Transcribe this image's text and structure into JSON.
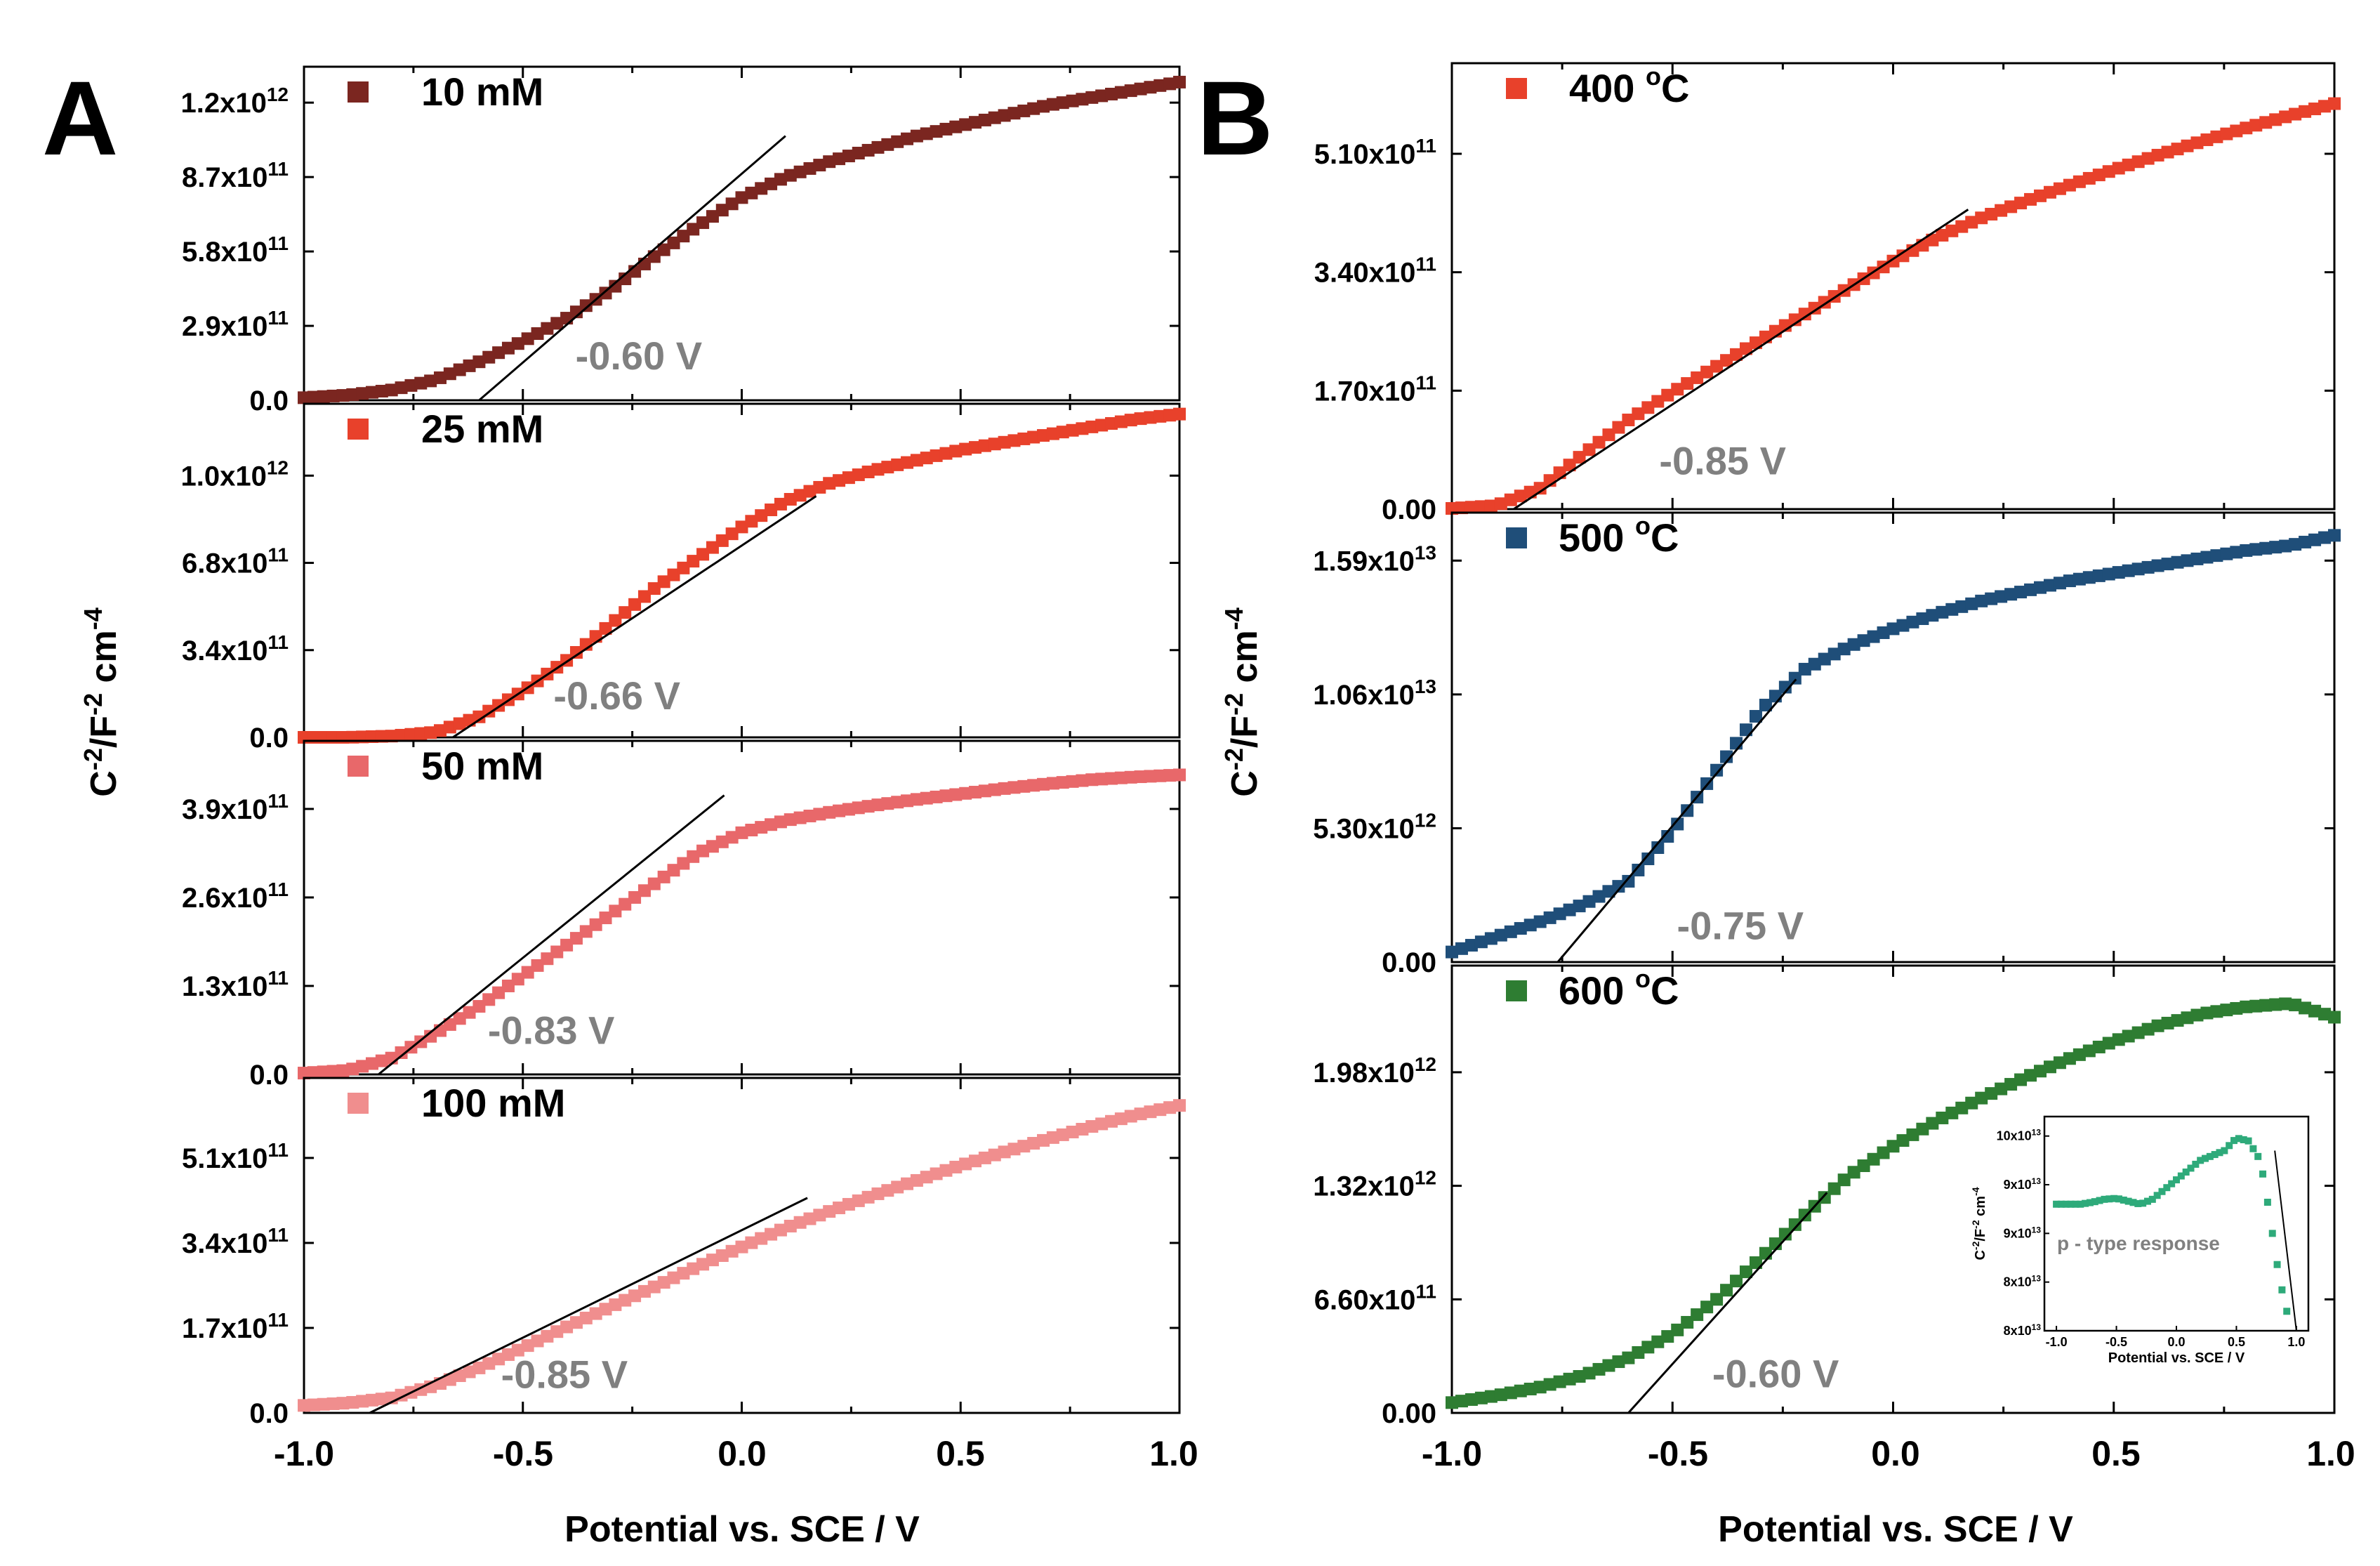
{
  "figure": {
    "panels": [
      {
        "letter": "A",
        "y_axis_title": "C",
        "y_axis_title_sup1": "-2",
        "y_axis_title_mid": "/F",
        "y_axis_title_sup2": "-2",
        "y_axis_title_unit": " cm",
        "y_axis_title_sup3": "-4",
        "x_axis_title": "Potential vs. SCE /  V",
        "x_ticks": [
          "-1.0",
          "-0.5",
          "0.0",
          "0.5",
          "1.0"
        ]
      },
      {
        "letter": "B",
        "y_axis_title": "C",
        "y_axis_title_sup1": "-2",
        "y_axis_title_mid": "/F",
        "y_axis_title_sup2": "-2",
        "y_axis_title_unit": " cm",
        "y_axis_title_sup3": "-4",
        "x_axis_title": "Potential vs. SCE /  V",
        "x_ticks": [
          "-1.0",
          "-0.5",
          "0.0",
          "0.5",
          "1.0"
        ]
      }
    ]
  },
  "chart_data": [
    {
      "type": "scatter",
      "panel": "A",
      "subplot": 1,
      "legend": "10 mM",
      "color": "#7b2620",
      "xlim": [
        -1.0,
        1.0
      ],
      "ylim": [
        0,
        1300000000000.0
      ],
      "yticks": [
        {
          "v": 0,
          "m": "0.0",
          "e": ""
        },
        {
          "v": 290000000000.0,
          "m": "2.9x10",
          "e": "11"
        },
        {
          "v": 580000000000.0,
          "m": "5.8x10",
          "e": "11"
        },
        {
          "v": 870000000000.0,
          "m": "8.7x10",
          "e": "11"
        },
        {
          "v": 1160000000000.0,
          "m": "1.2x10",
          "e": "12"
        }
      ],
      "x": [
        -1.0,
        -0.9,
        -0.8,
        -0.7,
        -0.6,
        -0.5,
        -0.4,
        -0.3,
        -0.2,
        -0.1,
        0.0,
        0.1,
        0.2,
        0.3,
        0.4,
        0.5,
        0.6,
        0.7,
        0.8,
        0.9,
        1.0
      ],
      "y": [
        10000000000.0,
        20000000000.0,
        40000000000.0,
        80000000000.0,
        150000000000.0,
        230000000000.0,
        320000000000.0,
        430000000000.0,
        560000000000.0,
        680000000000.0,
        790000000000.0,
        870000000000.0,
        930000000000.0,
        980000000000.0,
        1030000000000.0,
        1070000000000.0,
        1110000000000.0,
        1150000000000.0,
        1180000000000.0,
        1210000000000.0,
        1240000000000.0
      ],
      "fit_line": {
        "x": [
          -0.6,
          0.1
        ],
        "y": [
          0,
          1030000000000.0
        ]
      },
      "annotation": "-0.60 V",
      "annotation_pos": {
        "x": -0.38,
        "y": 120000000000.0
      }
    },
    {
      "type": "scatter",
      "panel": "A",
      "subplot": 2,
      "legend": "25 mM",
      "color": "#e8412b",
      "xlim": [
        -1.0,
        1.0
      ],
      "ylim": [
        0,
        1300000000000.0
      ],
      "yticks": [
        {
          "v": 0,
          "m": "0.0",
          "e": ""
        },
        {
          "v": 340000000000.0,
          "m": "3.4x10",
          "e": "11"
        },
        {
          "v": 680000000000.0,
          "m": "6.8x10",
          "e": "11"
        },
        {
          "v": 1020000000000.0,
          "m": "1.0x10",
          "e": "12"
        }
      ],
      "x": [
        -1.0,
        -0.9,
        -0.8,
        -0.7,
        -0.6,
        -0.5,
        -0.4,
        -0.3,
        -0.2,
        -0.1,
        0.0,
        0.1,
        0.2,
        0.3,
        0.4,
        0.5,
        0.6,
        0.7,
        0.8,
        0.9,
        1.0
      ],
      "y": [
        0,
        0,
        5000000000.0,
        20000000000.0,
        80000000000.0,
        180000000000.0,
        300000000000.0,
        440000000000.0,
        580000000000.0,
        700000000000.0,
        820000000000.0,
        920000000000.0,
        990000000000.0,
        1040000000000.0,
        1080000000000.0,
        1120000000000.0,
        1150000000000.0,
        1180000000000.0,
        1210000000000.0,
        1240000000000.0,
        1260000000000.0
      ],
      "fit_line": {
        "x": [
          -0.66,
          0.17
        ],
        "y": [
          0,
          940000000000.0
        ]
      },
      "annotation": "-0.66 V",
      "annotation_pos": {
        "x": -0.43,
        "y": 110000000000.0
      }
    },
    {
      "type": "scatter",
      "panel": "A",
      "subplot": 3,
      "legend": "50 mM",
      "color": "#e8686a",
      "xlim": [
        -1.0,
        1.0
      ],
      "ylim": [
        0,
        490000000000.0
      ],
      "yticks": [
        {
          "v": 0,
          "m": "0.0",
          "e": ""
        },
        {
          "v": 130000000000.0,
          "m": "1.3x10",
          "e": "11"
        },
        {
          "v": 260000000000.0,
          "m": "2.6x10",
          "e": "11"
        },
        {
          "v": 390000000000.0,
          "m": "3.9x10",
          "e": "11"
        }
      ],
      "x": [
        -1.0,
        -0.9,
        -0.8,
        -0.7,
        -0.6,
        -0.5,
        -0.4,
        -0.3,
        -0.2,
        -0.1,
        0.0,
        0.1,
        0.2,
        0.3,
        0.4,
        0.5,
        0.6,
        0.7,
        0.8,
        0.9,
        1.0
      ],
      "y": [
        2000000000.0,
        6000000000.0,
        24000000000.0,
        60000000000.0,
        100000000000.0,
        145000000000.0,
        190000000000.0,
        235000000000.0,
        280000000000.0,
        325000000000.0,
        355000000000.0,
        373000000000.0,
        385000000000.0,
        395000000000.0,
        404000000000.0,
        412000000000.0,
        420000000000.0,
        427000000000.0,
        433000000000.0,
        437000000000.0,
        440000000000.0
      ],
      "fit_line": {
        "x": [
          -0.83,
          -0.04
        ],
        "y": [
          0,
          410000000000.0
        ]
      },
      "annotation": "-0.83 V",
      "annotation_pos": {
        "x": -0.58,
        "y": 45000000000.0
      }
    },
    {
      "type": "scatter",
      "panel": "A",
      "subplot": 4,
      "legend": "100 mM",
      "color": "#f08e8e",
      "xlim": [
        -1.0,
        1.0
      ],
      "ylim": [
        0,
        670000000000.0
      ],
      "yticks": [
        {
          "v": 0,
          "m": "0.0",
          "e": ""
        },
        {
          "v": 170000000000.0,
          "m": "1.7x10",
          "e": "11"
        },
        {
          "v": 340000000000.0,
          "m": "3.4x10",
          "e": "11"
        },
        {
          "v": 510000000000.0,
          "m": "5.1x10",
          "e": "11"
        }
      ],
      "x": [
        -1.0,
        -0.9,
        -0.8,
        -0.7,
        -0.6,
        -0.5,
        -0.4,
        -0.3,
        -0.2,
        -0.1,
        0.0,
        0.1,
        0.2,
        0.3,
        0.4,
        0.5,
        0.6,
        0.7,
        0.8,
        0.9,
        1.0
      ],
      "y": [
        15000000000.0,
        20000000000.0,
        30000000000.0,
        55000000000.0,
        90000000000.0,
        130000000000.0,
        172000000000.0,
        212000000000.0,
        252000000000.0,
        293000000000.0,
        332000000000.0,
        370000000000.0,
        403000000000.0,
        435000000000.0,
        465000000000.0,
        495000000000.0,
        522000000000.0,
        548000000000.0,
        573000000000.0,
        596000000000.0,
        615000000000.0
      ],
      "fit_line": {
        "x": [
          -0.85,
          0.15
        ],
        "y": [
          0,
          430000000000.0
        ]
      },
      "annotation": "-0.85 V",
      "annotation_pos": {
        "x": -0.55,
        "y": 50000000000.0
      }
    },
    {
      "type": "scatter",
      "panel": "B",
      "subplot": 1,
      "legend_main": "400 ",
      "legend_sup": "o",
      "legend_unit": "C",
      "color": "#e8412b",
      "xlim": [
        -1.0,
        1.0
      ],
      "ylim": [
        0,
        640000000000.0
      ],
      "yticks": [
        {
          "v": 0,
          "m": "0.00",
          "e": ""
        },
        {
          "v": 170000000000.0,
          "m": "1.70x10",
          "e": "11"
        },
        {
          "v": 340000000000.0,
          "m": "3.40x10",
          "e": "11"
        },
        {
          "v": 510000000000.0,
          "m": "5.10x10",
          "e": "11"
        }
      ],
      "x": [
        -1.0,
        -0.9,
        -0.8,
        -0.7,
        -0.6,
        -0.5,
        -0.4,
        -0.3,
        -0.2,
        -0.1,
        0.0,
        0.1,
        0.2,
        0.3,
        0.4,
        0.5,
        0.6,
        0.7,
        0.8,
        0.9,
        1.0
      ],
      "y": [
        1000000000.0,
        5000000000.0,
        30000000000.0,
        80000000000.0,
        128000000000.0,
        168000000000.0,
        205000000000.0,
        243000000000.0,
        280000000000.0,
        318000000000.0,
        356000000000.0,
        390000000000.0,
        418000000000.0,
        442000000000.0,
        465000000000.0,
        487000000000.0,
        508000000000.0,
        528000000000.0,
        547000000000.0,
        565000000000.0,
        582000000000.0
      ],
      "fit_line": {
        "x": [
          -0.86,
          0.17
        ],
        "y": [
          0,
          430000000000.0
        ]
      },
      "annotation": "-0.85 V",
      "annotation_pos": {
        "x": -0.53,
        "y": 50000000000.0
      }
    },
    {
      "type": "scatter",
      "panel": "B",
      "subplot": 2,
      "legend_main": "500 ",
      "legend_sup": "o",
      "legend_unit": "C",
      "color": "#1f4e79",
      "xlim": [
        -1.0,
        1.0
      ],
      "ylim": [
        0,
        17800000000000.0
      ],
      "yticks": [
        {
          "v": 0,
          "m": "0.00",
          "e": ""
        },
        {
          "v": 5300000000000.0,
          "m": "5.30x10",
          "e": "12"
        },
        {
          "v": 10600000000000.0,
          "m": "1.06x10",
          "e": "13"
        },
        {
          "v": 15900000000000.0,
          "m": "1.59x10",
          "e": "13"
        }
      ],
      "x": [
        -1.0,
        -0.9,
        -0.8,
        -0.7,
        -0.6,
        -0.5,
        -0.4,
        -0.3,
        -0.2,
        -0.1,
        0.0,
        0.1,
        0.2,
        0.3,
        0.4,
        0.5,
        0.6,
        0.7,
        0.8,
        0.9,
        1.0
      ],
      "y": [
        400000000000.0,
        1000000000000.0,
        1600000000000.0,
        2300000000000.0,
        3200000000000.0,
        5200000000000.0,
        7600000000000.0,
        10000000000000.0,
        11600000000000.0,
        12500000000000.0,
        13200000000000.0,
        13800000000000.0,
        14300000000000.0,
        14700000000000.0,
        15100000000000.0,
        15400000000000.0,
        15700000000000.0,
        16000000000000.0,
        16300000000000.0,
        16500000000000.0,
        16900000000000.0
      ],
      "fit_line": {
        "x": [
          -0.76,
          -0.22
        ],
        "y": [
          0,
          11200000000000.0
        ]
      },
      "annotation": "-0.75 V",
      "annotation_pos": {
        "x": -0.49,
        "y": 900000000000.0
      }
    },
    {
      "type": "scatter",
      "panel": "B",
      "subplot": 3,
      "legend_main": "600 ",
      "legend_sup": "o",
      "legend_unit": "C",
      "color": "#2e7d32",
      "xlim": [
        -1.0,
        1.0
      ],
      "ylim": [
        0,
        2600000000000.0
      ],
      "yticks": [
        {
          "v": 0,
          "m": "0.00",
          "e": ""
        },
        {
          "v": 660000000000.0,
          "m": "6.60x10",
          "e": "11"
        },
        {
          "v": 1320000000000.0,
          "m": "1.32x10",
          "e": "12"
        },
        {
          "v": 1980000000000.0,
          "m": "1.98x10",
          "e": "12"
        }
      ],
      "x": [
        -1.0,
        -0.9,
        -0.8,
        -0.7,
        -0.6,
        -0.5,
        -0.4,
        -0.3,
        -0.2,
        -0.1,
        0.0,
        0.1,
        0.2,
        0.3,
        0.4,
        0.5,
        0.6,
        0.7,
        0.8,
        0.9,
        1.0
      ],
      "y": [
        60000000000.0,
        100000000000.0,
        150000000000.0,
        220000000000.0,
        320000000000.0,
        460000000000.0,
        660000000000.0,
        900000000000.0,
        1150000000000.0,
        1380000000000.0,
        1550000000000.0,
        1700000000000.0,
        1830000000000.0,
        1950000000000.0,
        2060000000000.0,
        2160000000000.0,
        2250000000000.0,
        2320000000000.0,
        2360000000000.0,
        2380000000000.0,
        2300000000000.0
      ],
      "fit_line": {
        "x": [
          -0.6,
          -0.15
        ],
        "y": [
          0,
          1280000000000.0
        ]
      },
      "annotation": "-0.60 V",
      "annotation_pos": {
        "x": -0.41,
        "y": 150000000000.0
      },
      "inset": {
        "type": "scatter",
        "color": "#2eaa7a",
        "xlim": [
          -1.1,
          1.1
        ],
        "ylim": [
          80000000000000.0,
          102000000000000.0
        ],
        "xticks": [
          "-1.0",
          "-0.5",
          "0.0",
          "0.5",
          "1.0"
        ],
        "yticks": [
          {
            "v": 80000000000000.0,
            "m": "8x10",
            "e": "13"
          },
          {
            "v": 85000000000000.0,
            "m": "8x10",
            "e": "13"
          },
          {
            "v": 90000000000000.0,
            "m": "9x10",
            "e": "13"
          },
          {
            "v": 95000000000000.0,
            "m": "9x10",
            "e": "13"
          },
          {
            "v": 100000000000000.0,
            "m": "10x10",
            "e": "13"
          }
        ],
        "xlabel": "Potential vs. SCE /  V",
        "ylabel": "C",
        "ylabel_sup1": "-2",
        "ylabel_mid": "/F",
        "ylabel_sup2": "-2",
        "ylabel_unit": " cm",
        "ylabel_sup3": "-4",
        "x": [
          -1.0,
          -0.9,
          -0.8,
          -0.7,
          -0.6,
          -0.5,
          -0.4,
          -0.3,
          -0.2,
          -0.1,
          0.0,
          0.1,
          0.2,
          0.3,
          0.4,
          0.5,
          0.6,
          0.7,
          0.75,
          0.8,
          0.85,
          0.9,
          0.95
        ],
        "y": [
          93000000000000.0,
          93000000000000.0,
          93000000000000.0,
          93200000000000.0,
          93500000000000.0,
          93600000000000.0,
          93300000000000.0,
          93000000000000.0,
          93500000000000.0,
          94500000000000.0,
          95500000000000.0,
          96500000000000.0,
          97500000000000.0,
          98000000000000.0,
          98500000000000.0,
          99800000000000.0,
          99500000000000.0,
          97500000000000.0,
          94000000000000.0,
          90000000000000.0,
          86000000000000.0,
          83000000000000.0,
          80500000000000.0
        ],
        "fit_line": {
          "x": [
            0.82,
            1.0
          ],
          "y": [
            98500000000000.0,
            80000000000000.0
          ]
        },
        "annotation": "p - type response"
      }
    }
  ]
}
